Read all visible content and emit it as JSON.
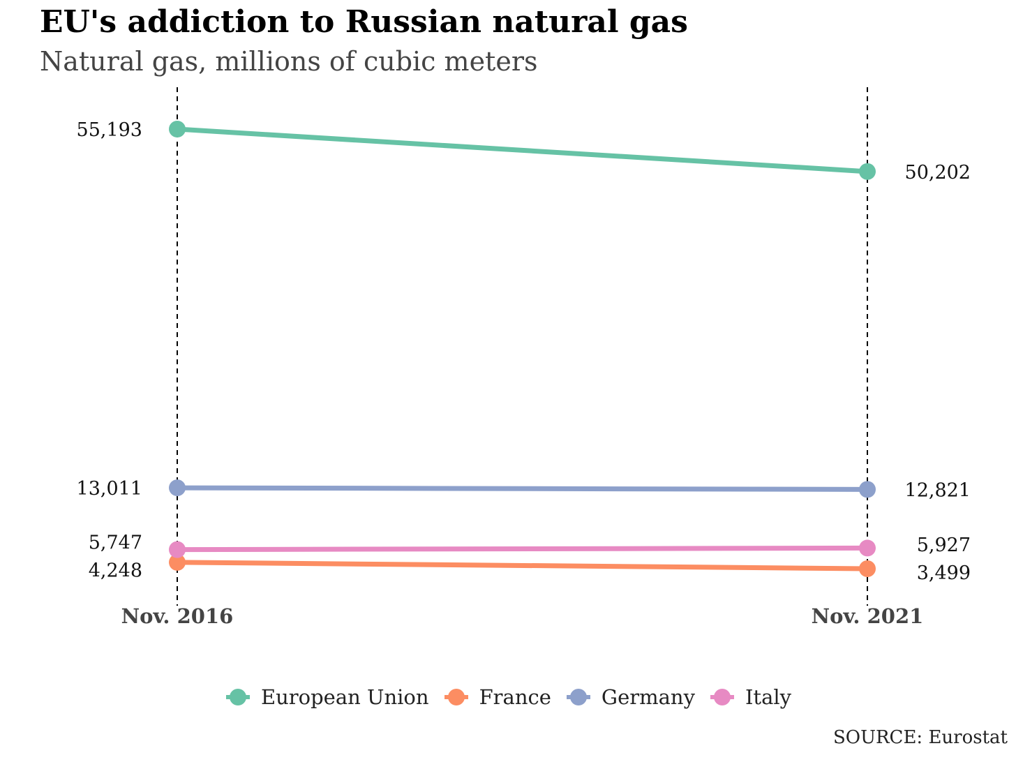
{
  "chart_data": {
    "type": "line",
    "title": "EU's addiction to Russian natural gas",
    "subtitle": "Natural gas, millions of cubic meters",
    "x": [
      "Nov. 2016",
      "Nov. 2021"
    ],
    "ylim": [
      3499,
      55193
    ],
    "grid": false,
    "legend_position": "bottom",
    "series": [
      {
        "name": "European Union",
        "values": [
          55193,
          50202
        ],
        "labels": [
          "55,193",
          "50,202"
        ],
        "color": "#66c2a5"
      },
      {
        "name": "France",
        "values": [
          4248,
          3499
        ],
        "labels": [
          "4,248",
          "3,499"
        ],
        "color": "#fc8d62"
      },
      {
        "name": "Germany",
        "values": [
          13011,
          12821
        ],
        "labels": [
          "13,011",
          "12,821"
        ],
        "color": "#8da0cb"
      },
      {
        "name": "Italy",
        "values": [
          5747,
          5927
        ],
        "labels": [
          "5,747",
          "5,927"
        ],
        "color": "#e78ac3"
      }
    ],
    "source": "SOURCE: Eurostat"
  }
}
